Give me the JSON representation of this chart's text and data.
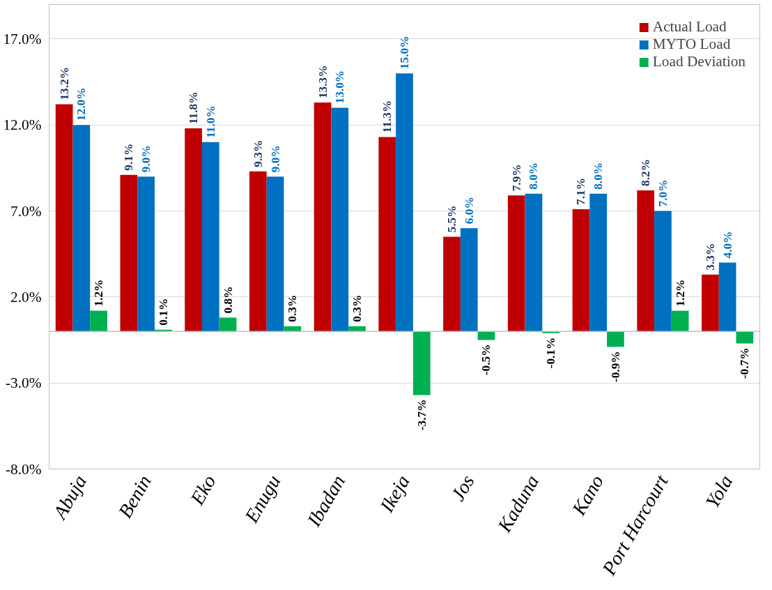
{
  "chart_data": {
    "type": "bar",
    "categories": [
      "Abuja",
      "Benin",
      "Eko",
      "Enugu",
      "Ibadan",
      "Ikeja",
      "Jos",
      "Kaduna",
      "Kano",
      "Port Harcourt",
      "Yola"
    ],
    "series": [
      {
        "name": "Actual Load",
        "color": "#c00000",
        "values": [
          13.2,
          9.1,
          11.8,
          9.3,
          13.3,
          11.3,
          5.5,
          7.9,
          7.1,
          8.2,
          3.3
        ],
        "value_labels": [
          "13.2%",
          "9.1%",
          "11.8%",
          "9.3%",
          "13.3%",
          "11.3%",
          "5.5%",
          "7.9%",
          "7.1%",
          "8.2%",
          "3.3%"
        ]
      },
      {
        "name": "MYTO Load",
        "color": "#0070c0",
        "values": [
          12.0,
          9.0,
          11.0,
          9.0,
          13.0,
          15.0,
          6.0,
          8.0,
          8.0,
          7.0,
          4.0
        ],
        "value_labels": [
          "12.0%",
          "9.0%",
          "11.0%",
          "9.0%",
          "13.0%",
          "15.0%",
          "6.0%",
          "8.0%",
          "8.0%",
          "7.0%",
          "4.0%"
        ]
      },
      {
        "name": "Load Deviation",
        "color": "#00b050",
        "values": [
          1.2,
          0.1,
          0.8,
          0.3,
          0.3,
          -3.7,
          -0.5,
          -0.1,
          -0.9,
          1.2,
          -0.7
        ],
        "value_labels": [
          "1.2%",
          "0.1%",
          "0.8%",
          "0.3%",
          "0.3%",
          "-3.7%",
          "-0.5%",
          "-0.1%",
          "-0.9%",
          "1.2%",
          "-0.7%"
        ]
      }
    ],
    "ylim": [
      -8,
      19
    ],
    "yticks": [
      {
        "value": -8,
        "label": "-8.0%"
      },
      {
        "value": -3,
        "label": "-3.0%"
      },
      {
        "value": 2,
        "label": "2.0%"
      },
      {
        "value": 7,
        "label": "7.0%"
      },
      {
        "value": 12,
        "label": "12.0%"
      },
      {
        "value": 17,
        "label": "17.0%"
      }
    ],
    "grid": "y",
    "legend": "top right"
  }
}
